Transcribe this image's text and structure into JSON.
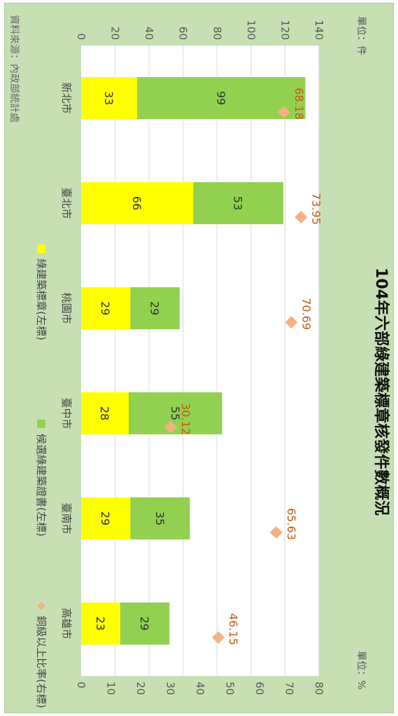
{
  "chart_data": {
    "type": "bar",
    "title": "104年六部綠建築標章核發件數概況",
    "unit_left": "單位：件",
    "unit_right": "單位：%",
    "source": "資料來源：內政部統計處",
    "categories": [
      "新北市",
      "臺北市",
      "桃園市",
      "臺中市",
      "臺南市",
      "高雄市"
    ],
    "stacked": true,
    "series": [
      {
        "name": "綠建築標章(左標)",
        "color": "#ffff00",
        "axis": "left",
        "values": [
          33,
          66,
          29,
          28,
          29,
          23
        ]
      },
      {
        "name": "候選綠建築證書(左標)",
        "color": "#92d050",
        "axis": "left",
        "values": [
          99,
          53,
          29,
          55,
          35,
          29
        ]
      },
      {
        "name": "銅級以上比率(右標)",
        "color": "#f4b183",
        "axis": "right",
        "type": "scatter",
        "marker": "diamond",
        "values": [
          68.18,
          73.95,
          70.69,
          30.12,
          65.63,
          46.15
        ]
      }
    ],
    "y_left": {
      "min": 0,
      "max": 140,
      "ticks": [
        0,
        20,
        40,
        60,
        80,
        100,
        120,
        140
      ]
    },
    "y_right": {
      "min": 0,
      "max": 80,
      "ticks": [
        0,
        10,
        20,
        30,
        40,
        50,
        60,
        70,
        80
      ]
    },
    "grid": true,
    "legend_position": "bottom"
  }
}
